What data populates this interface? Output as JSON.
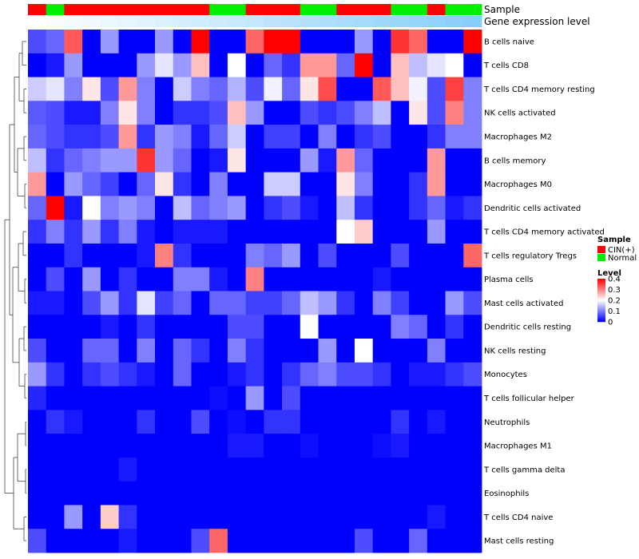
{
  "chart_data": {
    "type": "heatmap",
    "title": "",
    "annotations": {
      "sample_label": "Sample",
      "expression_label": "Gene expression level"
    },
    "columns": 25,
    "sample_groups": [
      "CIN(+)",
      "Normal",
      "CIN(+)",
      "CIN(+)",
      "CIN(+)",
      "CIN(+)",
      "CIN(+)",
      "CIN(+)",
      "CIN(+)",
      "CIN(+)",
      "Normal",
      "Normal",
      "CIN(+)",
      "CIN(+)",
      "CIN(+)",
      "Normal",
      "Normal",
      "CIN(+)",
      "CIN(+)",
      "CIN(+)",
      "Normal",
      "Normal",
      "CIN(+)",
      "Normal",
      "Normal"
    ],
    "sample_colors": {
      "CIN(+)": "#ff0000",
      "Normal": "#00ee00"
    },
    "expression_gradient": [
      "#ffffff",
      "#87cefa"
    ],
    "rows": [
      "B cells naive",
      "T cells CD8",
      "T cells CD4 memory resting",
      "NK cells activated",
      "Macrophages M2",
      "B cells memory",
      "Macrophages M0",
      "Dendritic cells activated",
      "T cells CD4 memory activated",
      "T cells regulatory  Tregs",
      "Plasma cells",
      "Mast cells activated",
      "Dendritic cells resting",
      "NK cells resting",
      "Monocytes",
      "T cells follicular helper",
      "Neutrophils",
      "Macrophages M1",
      "T cells gamma delta",
      "Eosinophils",
      "T cells CD4 naive",
      "Mast cells resting"
    ],
    "values": [
      [
        0.06,
        0.08,
        0.33,
        0.0,
        0.12,
        0.0,
        0.0,
        0.12,
        0.0,
        0.4,
        0.0,
        0.0,
        0.32,
        0.4,
        0.4,
        0.0,
        0.0,
        0.0,
        0.12,
        0.0,
        0.36,
        0.32,
        0.0,
        0.0,
        0.4
      ],
      [
        0.0,
        0.02,
        0.12,
        0.0,
        0.0,
        0.0,
        0.12,
        0.18,
        0.12,
        0.25,
        0.0,
        0.2,
        0.0,
        0.08,
        0.04,
        0.28,
        0.28,
        0.08,
        0.4,
        0.0,
        0.25,
        0.15,
        0.18,
        0.2,
        0.0
      ],
      [
        0.16,
        0.18,
        0.1,
        0.22,
        0.06,
        0.28,
        0.1,
        0.0,
        0.16,
        0.1,
        0.08,
        0.14,
        0.06,
        0.19,
        0.08,
        0.22,
        0.34,
        0.0,
        0.0,
        0.33,
        0.25,
        0.19,
        0.06,
        0.35,
        0.1
      ],
      [
        0.07,
        0.06,
        0.02,
        0.02,
        0.1,
        0.22,
        0.1,
        0.0,
        0.04,
        0.04,
        0.06,
        0.25,
        0.12,
        0.0,
        0.0,
        0.06,
        0.04,
        0.06,
        0.1,
        0.15,
        0.0,
        0.22,
        0.06,
        0.3,
        0.1
      ],
      [
        0.08,
        0.06,
        0.04,
        0.04,
        0.06,
        0.28,
        0.04,
        0.12,
        0.1,
        0.02,
        0.08,
        0.16,
        0.0,
        0.05,
        0.05,
        0.0,
        0.1,
        0.0,
        0.04,
        0.06,
        0.0,
        0.0,
        0.04,
        0.1,
        0.1
      ],
      [
        0.15,
        0.04,
        0.08,
        0.1,
        0.12,
        0.12,
        0.36,
        0.12,
        0.08,
        0.0,
        0.02,
        0.22,
        0.0,
        0.0,
        0.0,
        0.12,
        0.02,
        0.28,
        0.08,
        0.0,
        0.0,
        0.0,
        0.28,
        0.0,
        0.0
      ],
      [
        0.28,
        0.0,
        0.12,
        0.08,
        0.05,
        0.0,
        0.08,
        0.22,
        0.04,
        0.0,
        0.1,
        0.0,
        0.0,
        0.16,
        0.16,
        0.0,
        0.0,
        0.22,
        0.1,
        0.0,
        0.0,
        0.04,
        0.28,
        0.0,
        0.0
      ],
      [
        0.08,
        0.4,
        0.02,
        0.2,
        0.1,
        0.12,
        0.1,
        0.0,
        0.15,
        0.08,
        0.1,
        0.12,
        0.0,
        0.04,
        0.06,
        0.02,
        0.0,
        0.15,
        0.04,
        0.0,
        0.0,
        0.04,
        0.08,
        0.02,
        0.04
      ],
      [
        0.04,
        0.1,
        0.04,
        0.12,
        0.04,
        0.1,
        0.02,
        0.0,
        0.02,
        0.02,
        0.02,
        0.0,
        0.0,
        0.0,
        0.0,
        0.0,
        0.0,
        0.2,
        0.24,
        0.0,
        0.0,
        0.0,
        0.12,
        0.0,
        0.0
      ],
      [
        0.0,
        0.0,
        0.04,
        0.0,
        0.0,
        0.0,
        0.02,
        0.3,
        0.04,
        0.0,
        0.0,
        0.0,
        0.1,
        0.08,
        0.12,
        0.0,
        0.06,
        0.0,
        0.0,
        0.0,
        0.06,
        0.0,
        0.0,
        0.0,
        0.32
      ],
      [
        0.0,
        0.06,
        0.0,
        0.12,
        0.0,
        0.04,
        0.0,
        0.0,
        0.1,
        0.1,
        0.02,
        0.0,
        0.3,
        0.0,
        0.0,
        0.0,
        0.0,
        0.0,
        0.0,
        0.02,
        0.0,
        0.0,
        0.0,
        0.0,
        0.0
      ],
      [
        0.02,
        0.02,
        0.0,
        0.06,
        0.12,
        0.04,
        0.18,
        0.05,
        0.08,
        0.0,
        0.08,
        0.08,
        0.05,
        0.05,
        0.08,
        0.15,
        0.12,
        0.04,
        0.0,
        0.1,
        0.05,
        0.0,
        0.0,
        0.12,
        0.06
      ],
      [
        0.0,
        0.0,
        0.0,
        0.0,
        0.02,
        0.0,
        0.04,
        0.0,
        0.0,
        0.0,
        0.0,
        0.06,
        0.06,
        0.0,
        0.0,
        0.2,
        0.0,
        0.0,
        0.0,
        0.0,
        0.1,
        0.08,
        0.0,
        0.04,
        0.0
      ],
      [
        0.06,
        0.0,
        0.0,
        0.08,
        0.08,
        0.0,
        0.1,
        0.0,
        0.08,
        0.04,
        0.0,
        0.1,
        0.04,
        0.0,
        0.0,
        0.0,
        0.12,
        0.0,
        0.2,
        0.0,
        0.0,
        0.0,
        0.1,
        0.0,
        0.0
      ],
      [
        0.12,
        0.04,
        0.0,
        0.04,
        0.06,
        0.04,
        0.02,
        0.0,
        0.08,
        0.0,
        0.0,
        0.02,
        0.04,
        0.0,
        0.04,
        0.08,
        0.1,
        0.06,
        0.06,
        0.04,
        0.0,
        0.02,
        0.02,
        0.04,
        0.06
      ],
      [
        0.03,
        0.0,
        0.0,
        0.0,
        0.0,
        0.0,
        0.0,
        0.0,
        0.0,
        0.0,
        0.01,
        0.0,
        0.12,
        0.0,
        0.06,
        0.0,
        0.0,
        0.0,
        0.0,
        0.0,
        0.0,
        0.0,
        0.0,
        0.0,
        0.0
      ],
      [
        0.0,
        0.04,
        0.02,
        0.0,
        0.0,
        0.0,
        0.04,
        0.0,
        0.0,
        0.06,
        0.0,
        0.01,
        0.0,
        0.04,
        0.04,
        0.0,
        0.0,
        0.0,
        0.0,
        0.0,
        0.04,
        0.0,
        0.02,
        0.0,
        0.0
      ],
      [
        0.0,
        0.0,
        0.0,
        0.0,
        0.0,
        0.0,
        0.0,
        0.0,
        0.0,
        0.0,
        0.0,
        0.02,
        0.02,
        0.0,
        0.0,
        0.01,
        0.0,
        0.0,
        0.0,
        0.01,
        0.02,
        0.0,
        0.0,
        0.0,
        0.0
      ],
      [
        0.0,
        0.0,
        0.0,
        0.0,
        0.0,
        0.02,
        0.0,
        0.0,
        0.0,
        0.0,
        0.0,
        0.0,
        0.0,
        0.0,
        0.0,
        0.0,
        0.0,
        0.0,
        0.0,
        0.0,
        0.0,
        0.0,
        0.0,
        0.0,
        0.0
      ],
      [
        0.0,
        0.0,
        0.0,
        0.0,
        0.0,
        0.0,
        0.0,
        0.0,
        0.0,
        0.0,
        0.0,
        0.0,
        0.0,
        0.0,
        0.0,
        0.0,
        0.0,
        0.0,
        0.0,
        0.0,
        0.0,
        0.0,
        0.0,
        0.0,
        0.0
      ],
      [
        0.0,
        0.0,
        0.12,
        0.0,
        0.24,
        0.04,
        0.0,
        0.0,
        0.0,
        0.0,
        0.0,
        0.0,
        0.0,
        0.0,
        0.0,
        0.0,
        0.0,
        0.0,
        0.0,
        0.0,
        0.0,
        0.0,
        0.02,
        0.0,
        0.0
      ],
      [
        0.06,
        0.0,
        0.0,
        0.0,
        0.0,
        0.02,
        0.0,
        0.0,
        0.0,
        0.06,
        0.32,
        0.0,
        0.0,
        0.0,
        0.0,
        0.0,
        0.0,
        0.0,
        0.06,
        0.0,
        0.0,
        0.08,
        0.0,
        0.0,
        0.0
      ]
    ],
    "legend": {
      "sample_title": "Sample",
      "sample_entries": [
        "CIN(+)",
        "Normal"
      ],
      "level_title": "Level",
      "level_ticks": [
        "0.4",
        "0.3",
        "0.2",
        "0.1",
        "0"
      ],
      "level_range": [
        0,
        0.4
      ],
      "level_colors": [
        "#0000ff",
        "#ffffff",
        "#ff0000"
      ]
    }
  }
}
